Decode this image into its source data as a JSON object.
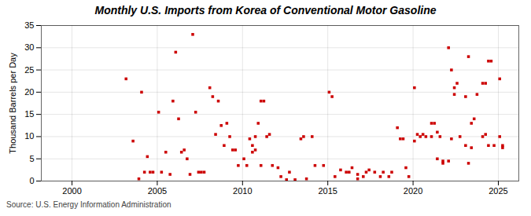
{
  "chart_data": {
    "type": "scatter",
    "title": "Monthly U.S. Imports from Korea of Conventional Motor Gasoline",
    "ylabel": "Thousand Barrels per Day",
    "source": "Source: U.S. Energy Information Administration",
    "color": "#cc0000",
    "marker": "square",
    "grid": true,
    "xlim": [
      1998.2,
      2026.2
    ],
    "xticks": [
      2000,
      2005,
      2010,
      2015,
      2020,
      2025
    ],
    "ylim": [
      0,
      35
    ],
    "yticks": [
      0,
      5,
      10,
      15,
      20,
      25,
      30,
      35
    ],
    "x": [
      2003.17,
      2003.58,
      2003.92,
      2004.08,
      2004.25,
      2004.42,
      2004.58,
      2004.75,
      2005.08,
      2005.25,
      2005.5,
      2005.75,
      2005.92,
      2006.08,
      2006.25,
      2006.42,
      2006.58,
      2006.75,
      2006.92,
      2007.08,
      2007.25,
      2007.42,
      2007.58,
      2007.75,
      2008.08,
      2008.25,
      2008.42,
      2008.58,
      2008.75,
      2008.92,
      2009.08,
      2009.25,
      2009.42,
      2009.58,
      2009.75,
      2010.08,
      2010.25,
      2010.42,
      2010.58,
      2010.58,
      2010.75,
      2010.75,
      2010.92,
      2011.08,
      2011.08,
      2011.25,
      2011.42,
      2011.58,
      2011.75,
      2012.08,
      2012.25,
      2012.58,
      2012.75,
      2013.08,
      2013.42,
      2013.58,
      2013.75,
      2014.08,
      2014.25,
      2014.75,
      2015.08,
      2015.25,
      2015.42,
      2015.75,
      2016.08,
      2016.25,
      2016.42,
      2016.75,
      2016.75,
      2017.08,
      2017.25,
      2017.42,
      2017.75,
      2018.08,
      2018.25,
      2018.58,
      2018.75,
      2019.08,
      2019.25,
      2019.42,
      2019.58,
      2019.75,
      2020.08,
      2020.08,
      2020.25,
      2020.42,
      2020.58,
      2020.75,
      2021.08,
      2021.08,
      2021.25,
      2021.42,
      2021.42,
      2021.58,
      2021.75,
      2021.75,
      2022.08,
      2022.08,
      2022.25,
      2022.25,
      2022.42,
      2022.42,
      2022.58,
      2022.75,
      2023.08,
      2023.08,
      2023.25,
      2023.25,
      2023.42,
      2023.42,
      2023.58,
      2023.75,
      2024.08,
      2024.08,
      2024.25,
      2024.25,
      2024.42,
      2024.42,
      2024.58,
      2024.75,
      2025.08,
      2025.08,
      2025.25,
      2025.25
    ],
    "values": [
      23.0,
      9.0,
      0.5,
      20.0,
      2.0,
      5.5,
      2.0,
      2.0,
      15.5,
      2.0,
      6.5,
      1.5,
      18.0,
      29.0,
      14.0,
      6.5,
      7.0,
      5.0,
      1.5,
      33.0,
      15.5,
      2.0,
      2.0,
      2.0,
      21.0,
      19.0,
      10.5,
      18.0,
      12.5,
      8.0,
      13.0,
      10.0,
      7.0,
      7.0,
      3.5,
      5.0,
      3.5,
      9.5,
      8.0,
      6.5,
      10.0,
      7.0,
      13.0,
      18.0,
      3.5,
      18.0,
      10.0,
      10.5,
      3.5,
      3.0,
      1.0,
      0.3,
      2.0,
      0.3,
      9.5,
      10.0,
      0.5,
      10.0,
      3.5,
      3.5,
      20.0,
      19.0,
      1.0,
      2.5,
      2.0,
      2.0,
      3.0,
      1.5,
      0.5,
      1.0,
      2.0,
      2.5,
      2.0,
      1.0,
      2.0,
      1.0,
      2.0,
      12.0,
      9.5,
      9.5,
      3.0,
      1.0,
      21.0,
      9.0,
      10.5,
      10.0,
      10.5,
      10.0,
      13.0,
      10.0,
      13.0,
      11.0,
      5.0,
      10.0,
      4.5,
      4.0,
      30.0,
      4.5,
      25.0,
      9.5,
      21.0,
      19.5,
      22.0,
      10.0,
      19.0,
      8.0,
      28.0,
      4.0,
      13.0,
      7.5,
      14.0,
      19.5,
      22.0,
      10.0,
      22.0,
      10.5,
      27.0,
      8.0,
      27.0,
      8.0,
      23.0,
      10.0,
      8.0,
      7.5
    ]
  }
}
